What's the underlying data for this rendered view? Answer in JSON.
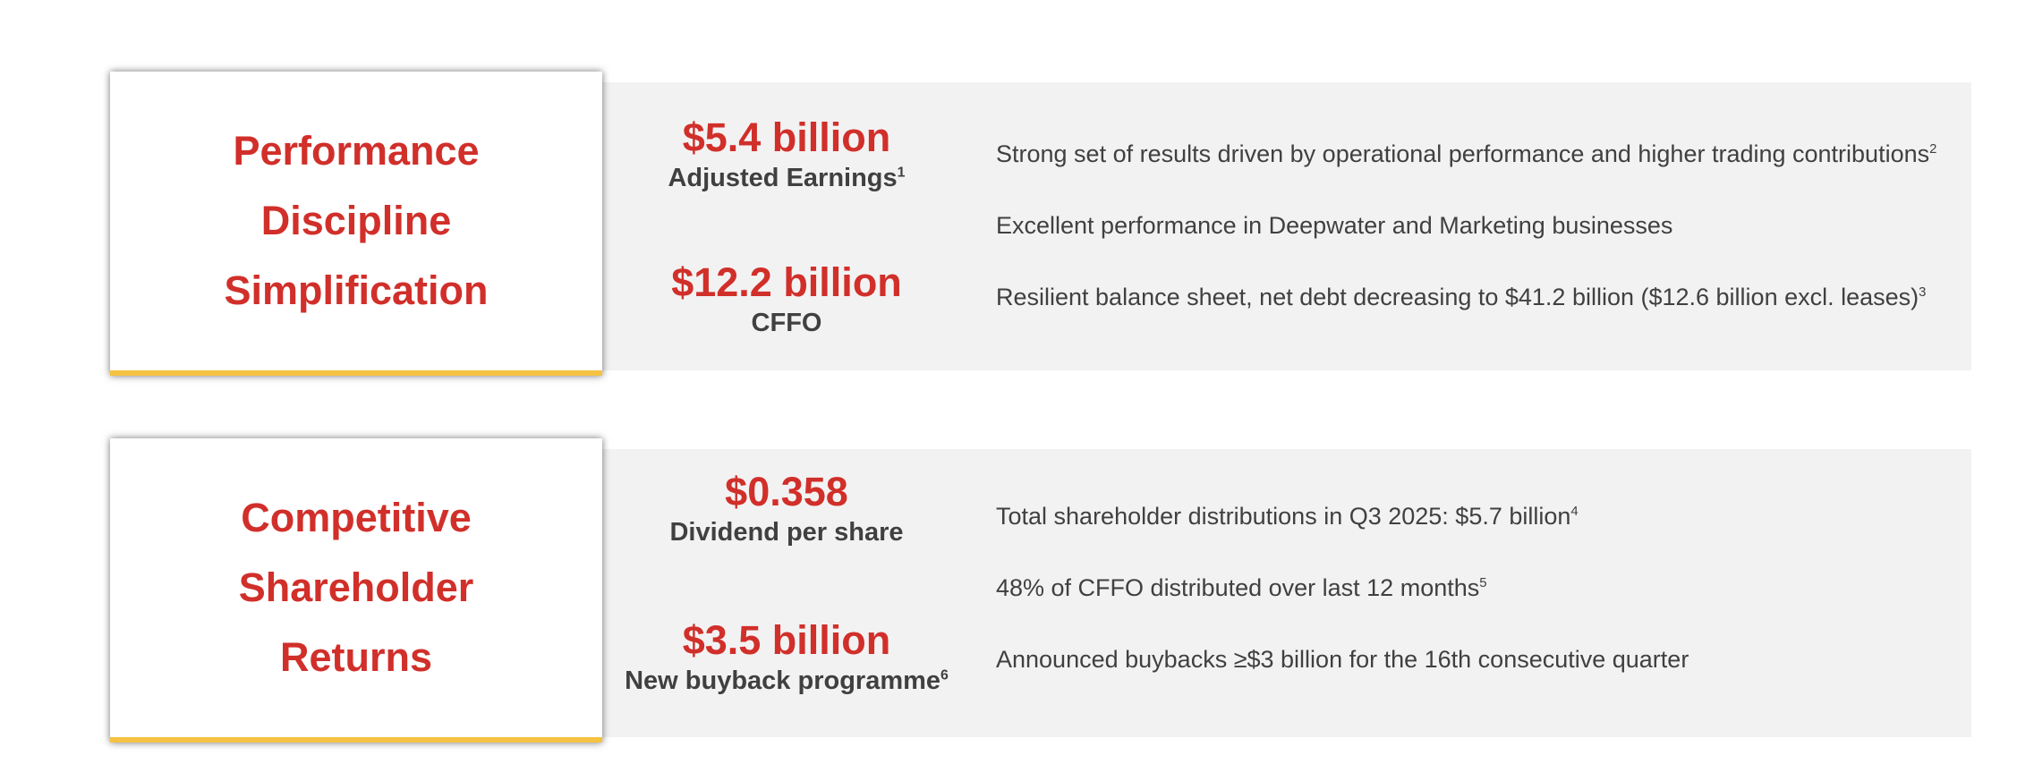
{
  "section1": {
    "title_lines": [
      "Performance",
      "Discipline",
      "Simplification"
    ],
    "metrics": [
      {
        "value": "$5.4 billion",
        "label": "Adjusted Earnings",
        "sup": "1"
      },
      {
        "value": "$12.2 billion",
        "label": "CFFO",
        "sup": ""
      }
    ],
    "bullets": [
      {
        "text": "Strong set of results driven by operational performance and higher trading contributions",
        "sup": "2"
      },
      {
        "text": "Excellent performance in Deepwater and Marketing businesses",
        "sup": ""
      },
      {
        "text": "Resilient balance sheet, net debt decreasing to $41.2 billion ($12.6 billion excl. leases)",
        "sup": "3"
      }
    ]
  },
  "section2": {
    "title_lines": [
      "Competitive",
      "Shareholder",
      "Returns"
    ],
    "metrics": [
      {
        "value": "$0.358",
        "label": "Dividend per share",
        "sup": ""
      },
      {
        "value": "$3.5 billion",
        "label": "New buyback programme",
        "sup": "6"
      }
    ],
    "bullets": [
      {
        "text": "Total shareholder distributions in Q3 2025: $5.7 billion",
        "sup": "4"
      },
      {
        "text": "48% of CFFO distributed over last 12 months",
        "sup": "5"
      },
      {
        "text": "Announced buybacks ≥$3 billion for the 16th consecutive quarter",
        "sup": ""
      }
    ]
  },
  "colors": {
    "accent_red": "#d12f2a",
    "accent_yellow": "#f5c242",
    "panel_grey": "#f2f2f2",
    "text_dark": "#404040"
  }
}
